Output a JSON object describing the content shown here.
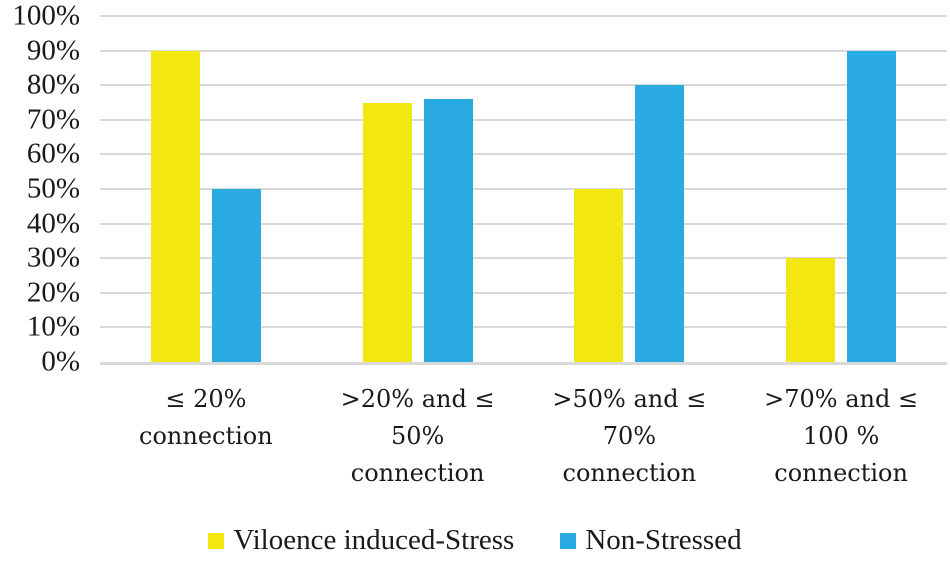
{
  "chart_data": {
    "type": "bar",
    "title": "",
    "categories": [
      "≤ 20% connection",
      ">20% and ≤ 50% connection",
      ">50% and ≤ 70% connection",
      ">70% and ≤ 100 % connection"
    ],
    "categories_lines": [
      [
        "≤ 20%",
        "connection"
      ],
      [
        ">20% and ≤",
        "50%",
        "connection"
      ],
      [
        ">50% and ≤",
        "70%",
        "connection"
      ],
      [
        ">70% and ≤",
        "100 %",
        "connection"
      ]
    ],
    "series": [
      {
        "name": "Viloence induced-Stress",
        "color": "#F3E712",
        "values": [
          90,
          75,
          50,
          30
        ]
      },
      {
        "name": "Non-Stressed",
        "color": "#29ABE2",
        "values": [
          50,
          76,
          80,
          90
        ]
      }
    ],
    "xlabel": "",
    "ylabel": "",
    "ylim": [
      0,
      100
    ],
    "ytick_labels": [
      "100%",
      "90%",
      "80%",
      "70%",
      "60%",
      "50%",
      "40%",
      "30%",
      "20%",
      "10%",
      "0%"
    ],
    "ytick_values": [
      100,
      90,
      80,
      70,
      60,
      50,
      40,
      30,
      20,
      10,
      0
    ],
    "grid": true,
    "gridline_color": "#D9D9D9",
    "text_color": "#1A1A1A",
    "background_color": "#FFFFFF",
    "legend_position": "bottom"
  }
}
